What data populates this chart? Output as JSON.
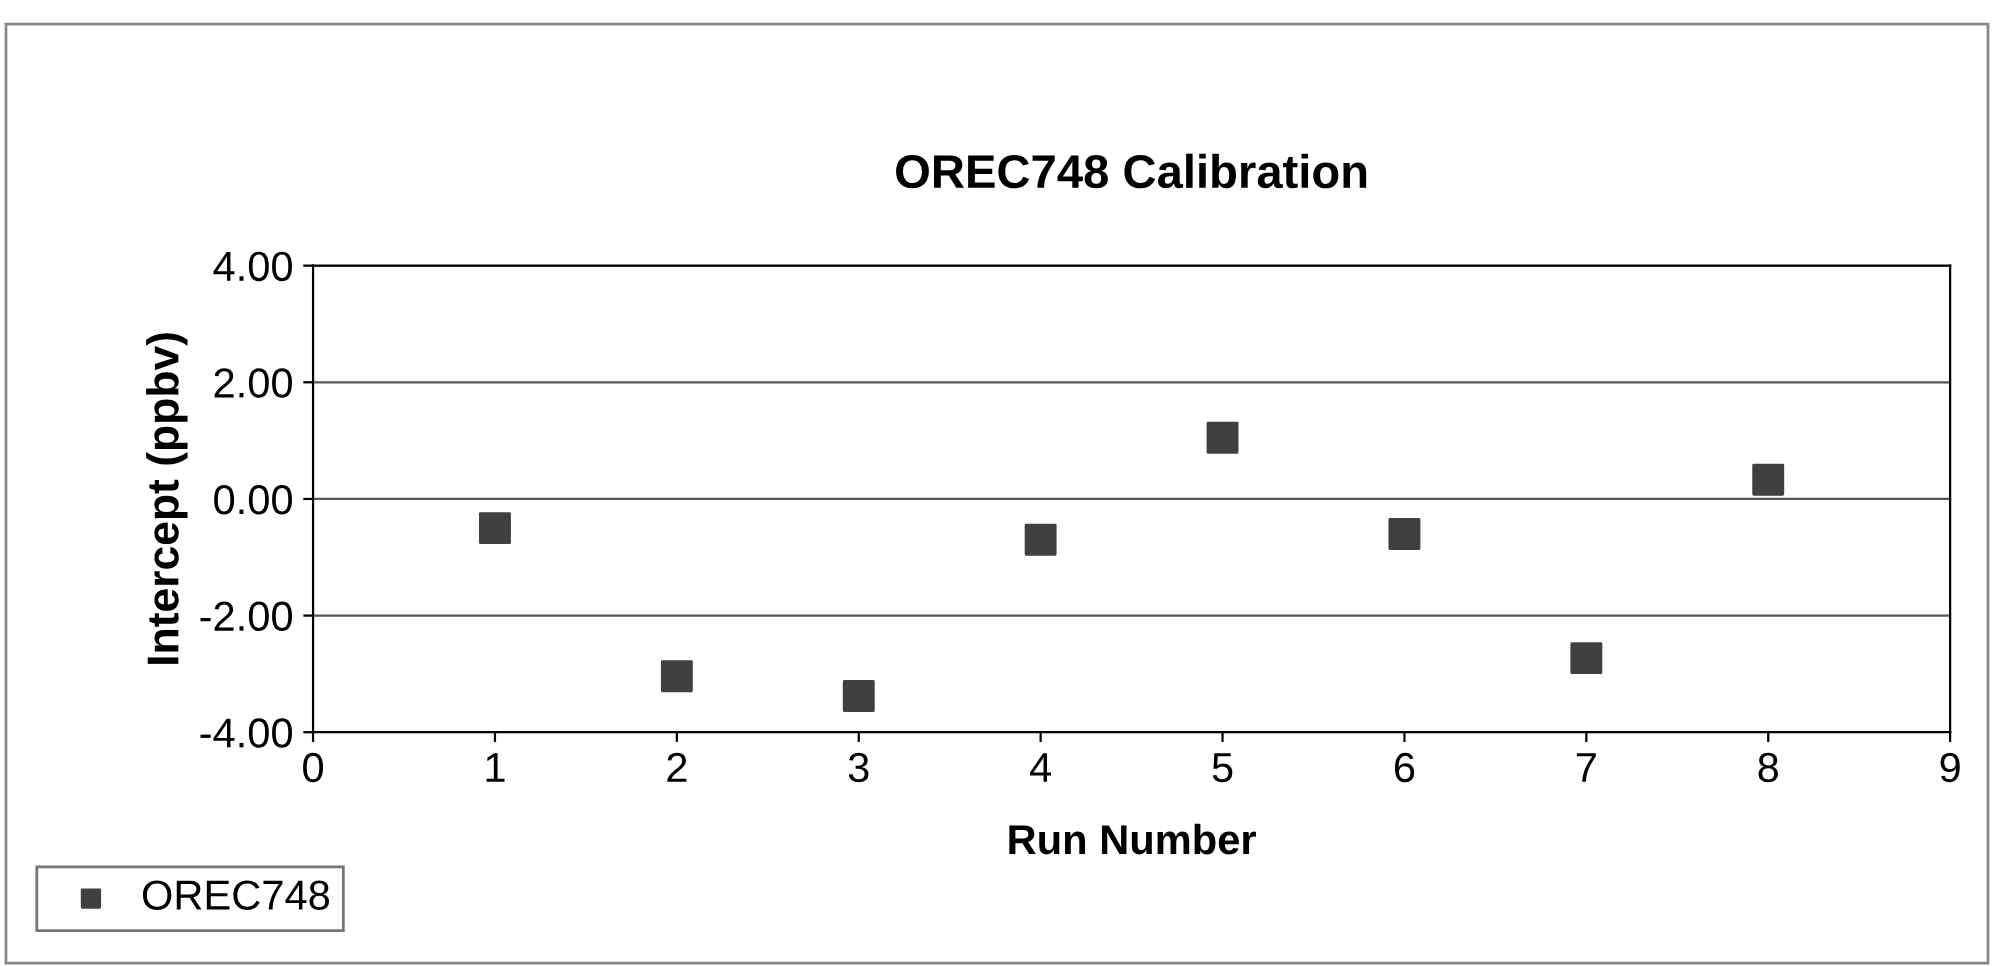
{
  "chart_data": {
    "type": "scatter",
    "title": "OREC748 Calibration",
    "xlabel": "Run Number",
    "ylabel": "Intercept (ppbv)",
    "series": [
      {
        "name": "OREC748",
        "color": "#404040",
        "x": [
          1,
          2,
          3,
          4,
          5,
          6,
          7,
          8
        ],
        "values": [
          -0.5,
          -3.04,
          -3.38,
          -0.7,
          1.05,
          -0.6,
          -2.73,
          0.33
        ]
      }
    ],
    "xlim": [
      0,
      9
    ],
    "xticks": [
      0,
      1,
      2,
      3,
      4,
      5,
      6,
      7,
      8,
      9
    ],
    "ylim": [
      -4,
      4
    ],
    "yticks": [
      {
        "value": -4,
        "label": "-4.00"
      },
      {
        "value": -2,
        "label": "-2.00"
      },
      {
        "value": 0,
        "label": "0.00"
      },
      {
        "value": 2,
        "label": "2.00"
      },
      {
        "value": 4,
        "label": "4.00"
      }
    ],
    "grid": "y",
    "legend": "bottom left",
    "marker": "square"
  }
}
